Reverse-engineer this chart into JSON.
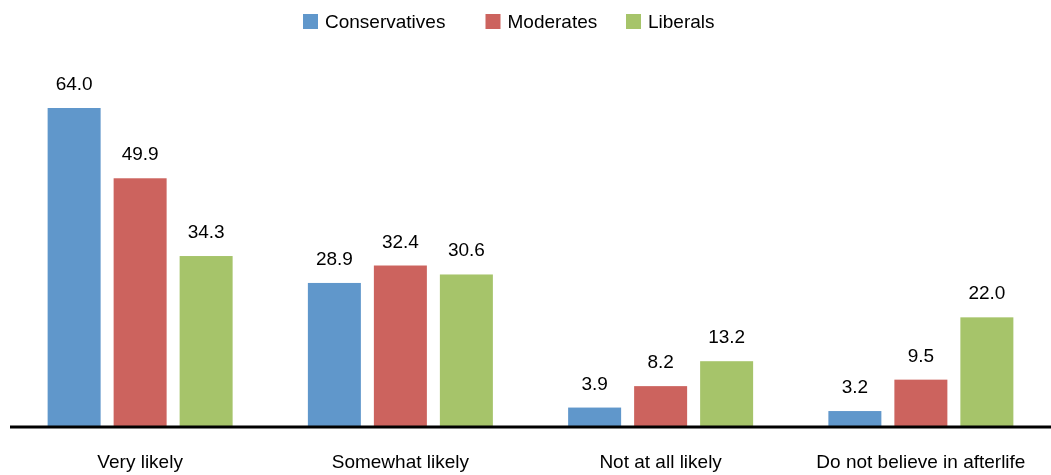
{
  "chart_data": {
    "type": "bar",
    "categories": [
      "Very likely",
      "Somewhat likely",
      "Not at all likely",
      "Do not believe in afterlife"
    ],
    "series": [
      {
        "name": "Conservatives",
        "color": "#6097cb",
        "values": [
          64.0,
          28.9,
          3.9,
          3.2
        ],
        "value_labels": [
          "64.0",
          "28.9",
          "3.9",
          "3.2"
        ]
      },
      {
        "name": "Moderates",
        "color": "#cc635e",
        "values": [
          49.9,
          32.4,
          8.2,
          9.5
        ],
        "value_labels": [
          "49.9",
          "32.4",
          "8.2",
          "9.5"
        ]
      },
      {
        "name": "Liberals",
        "color": "#a6c46a",
        "values": [
          34.3,
          30.6,
          13.2,
          22.0
        ],
        "value_labels": [
          "34.3",
          "30.6",
          "13.2",
          "22.0"
        ]
      }
    ],
    "legend": "top"
  }
}
